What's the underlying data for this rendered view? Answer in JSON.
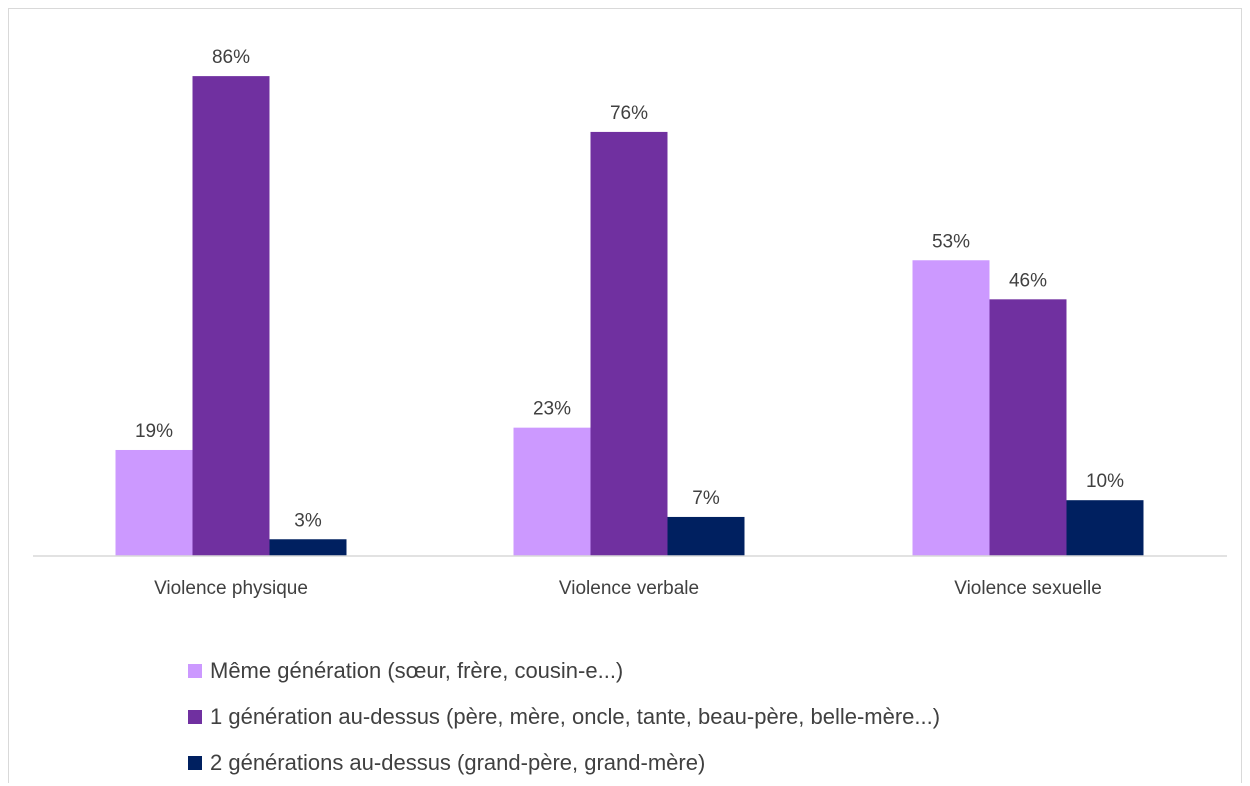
{
  "chart_data": {
    "type": "bar",
    "title": "",
    "xlabel": "",
    "ylabel": "",
    "ylim": [
      0,
      90
    ],
    "grid": false,
    "legend_placement": "bottom",
    "categories": [
      "Violence physique",
      "Violence verbale",
      "Violence sexuelle"
    ],
    "series": [
      {
        "name": "Même génération (sœur, frère, cousin-e...)",
        "color": "#cc99ff",
        "values": [
          19,
          23,
          53
        ],
        "labels": [
          "19%",
          "23%",
          "53%"
        ]
      },
      {
        "name": "1 génération au-dessus (père, mère, oncle, tante, beau-père, belle-mère...)",
        "color": "#7030a0",
        "values": [
          86,
          76,
          46
        ],
        "labels": [
          "86%",
          "76%",
          "46%"
        ]
      },
      {
        "name": "2 générations au-dessus (grand-père, grand-mère)",
        "color": "#002060",
        "values": [
          3,
          7,
          10
        ],
        "labels": [
          "3%",
          "7%",
          "10%"
        ]
      }
    ]
  }
}
